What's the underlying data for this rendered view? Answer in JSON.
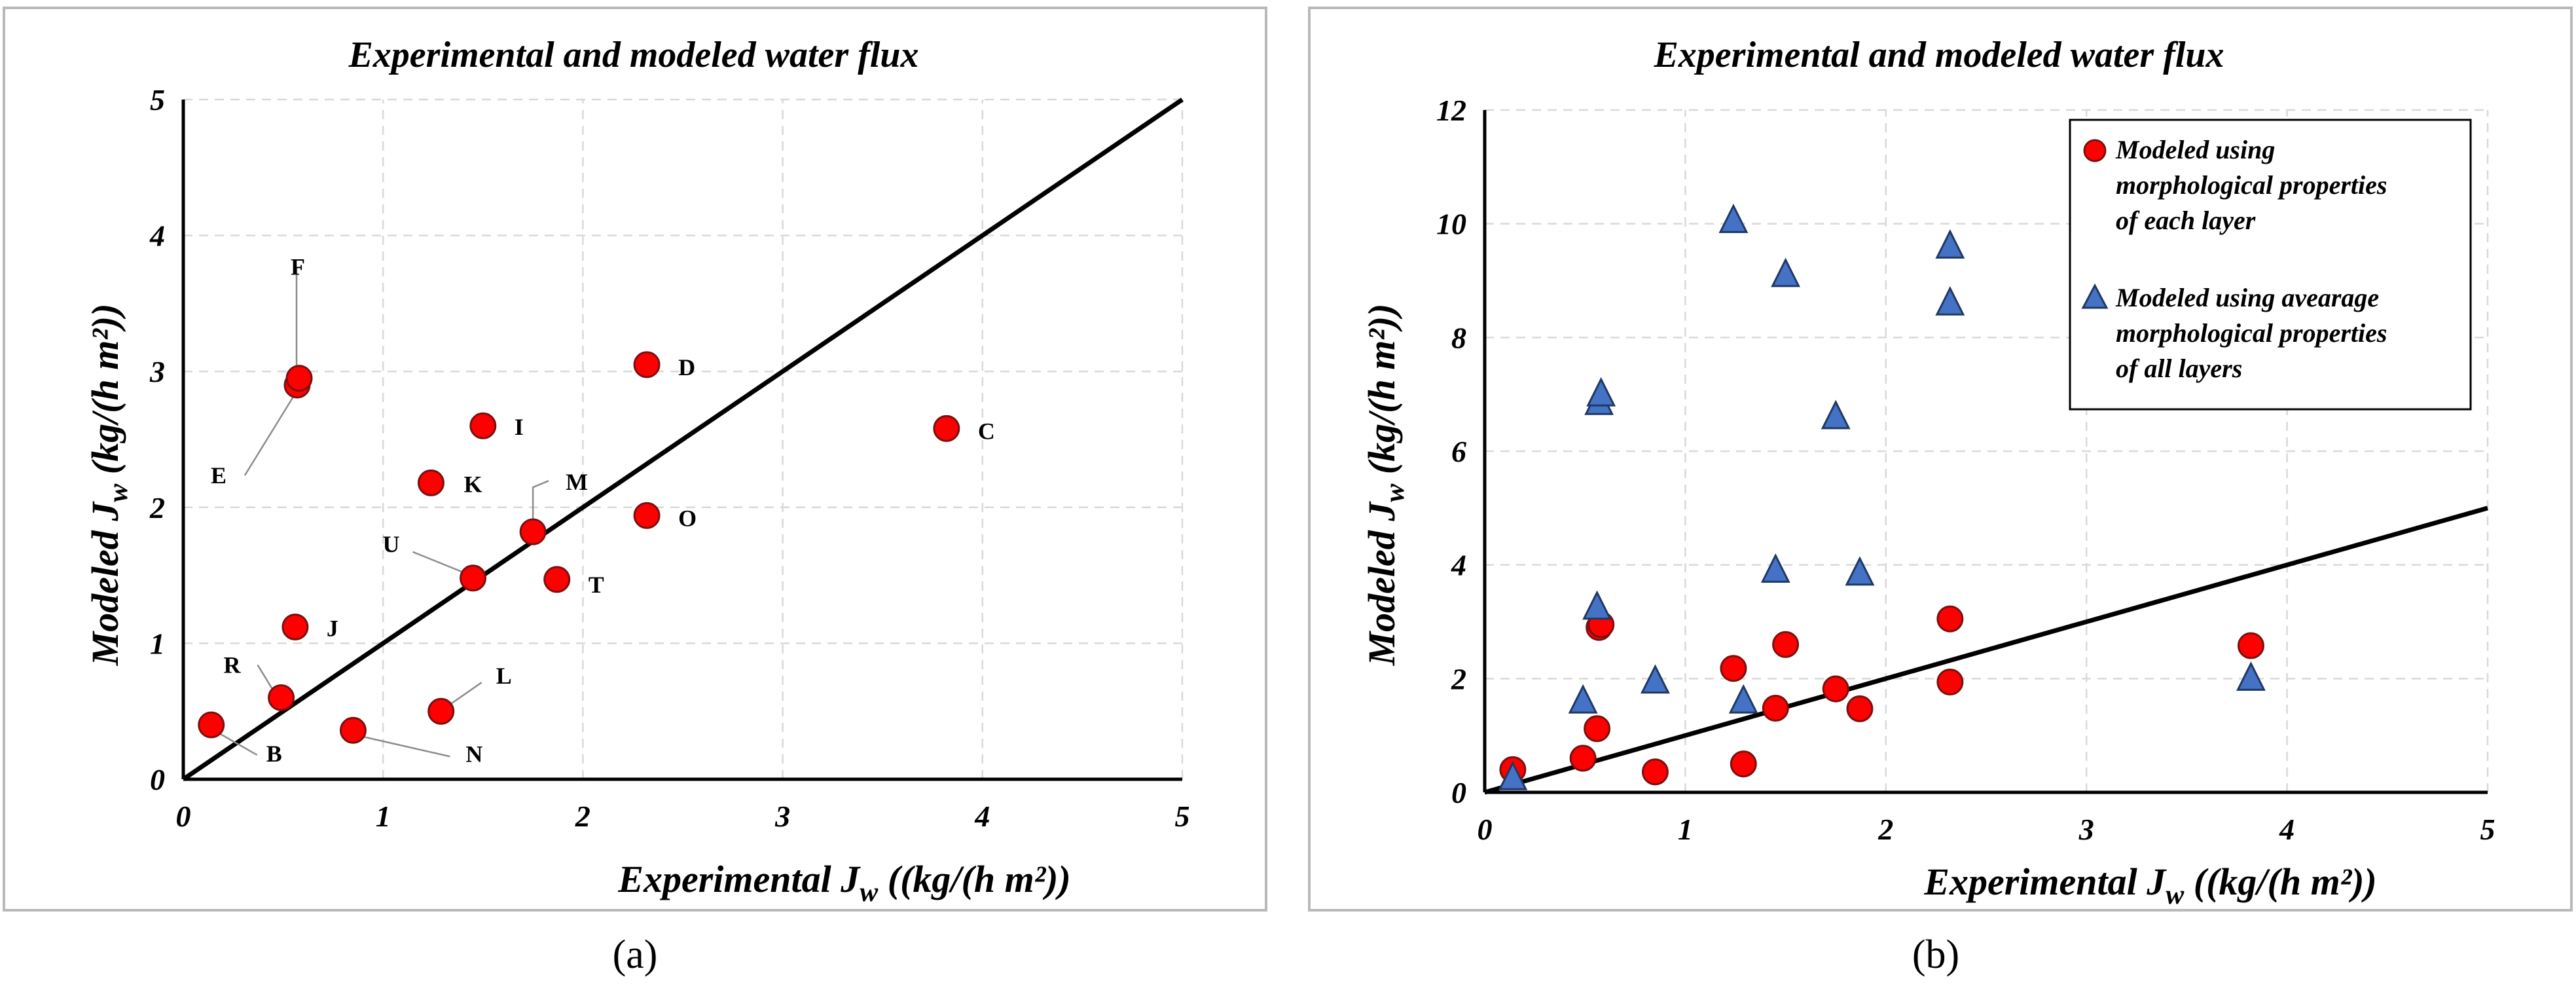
{
  "chart_data": [
    {
      "panel": "(a)",
      "type": "scatter",
      "title": "Experimental and modeled water flux",
      "xlabel": "Experimental J_w ((kg/(h m²))",
      "ylabel": "Modeled J_w (kg/(h m²))",
      "xlim": [
        0,
        5
      ],
      "ylim": [
        0,
        5
      ],
      "xticks": [
        0,
        1,
        2,
        3,
        4,
        5
      ],
      "yticks": [
        0,
        1,
        2,
        3,
        4,
        5
      ],
      "grid": true,
      "reference_line": {
        "x": [
          0,
          5
        ],
        "y": [
          0,
          5
        ],
        "name": "y = x"
      },
      "series": [
        {
          "name": "Modeled",
          "marker": "circle",
          "color": "#ff0000",
          "points": [
            {
              "label": "B",
              "x": 0.14,
              "y": 0.4
            },
            {
              "label": "R",
              "x": 0.49,
              "y": 0.6
            },
            {
              "label": "J",
              "x": 0.56,
              "y": 1.12
            },
            {
              "label": "E",
              "x": 0.57,
              "y": 2.9
            },
            {
              "label": "F",
              "x": 0.58,
              "y": 2.95
            },
            {
              "label": "N",
              "x": 0.85,
              "y": 0.36
            },
            {
              "label": "K",
              "x": 1.24,
              "y": 2.18
            },
            {
              "label": "L",
              "x": 1.29,
              "y": 0.5
            },
            {
              "label": "U",
              "x": 1.45,
              "y": 1.48
            },
            {
              "label": "I",
              "x": 1.5,
              "y": 2.6
            },
            {
              "label": "M",
              "x": 1.75,
              "y": 1.82
            },
            {
              "label": "T",
              "x": 1.87,
              "y": 1.47
            },
            {
              "label": "D",
              "x": 2.32,
              "y": 3.05
            },
            {
              "label": "O",
              "x": 2.32,
              "y": 1.94
            },
            {
              "label": "C",
              "x": 3.82,
              "y": 2.58
            }
          ]
        }
      ]
    },
    {
      "panel": "(b)",
      "type": "scatter",
      "title": "Experimental and modeled water flux",
      "xlabel": "Experimental J_w ((kg/(h m²))",
      "ylabel": "Modeled J_w (kg/(h m²))",
      "xlim": [
        0,
        5
      ],
      "ylim": [
        0,
        12
      ],
      "xticks": [
        0,
        1,
        2,
        3,
        4,
        5
      ],
      "yticks": [
        0,
        2,
        4,
        6,
        8,
        10,
        12
      ],
      "grid": true,
      "legend_position": "top-right",
      "reference_line": {
        "x": [
          0,
          5
        ],
        "y": [
          0,
          5
        ],
        "name": "y = x"
      },
      "series": [
        {
          "name": "Modeled using morphological properties of each layer",
          "legend_lines": [
            "Modeled using",
            "morphological properties",
            "of each layer"
          ],
          "marker": "circle",
          "color": "#ff0000",
          "points": [
            {
              "x": 0.14,
              "y": 0.4
            },
            {
              "x": 0.49,
              "y": 0.6
            },
            {
              "x": 0.56,
              "y": 1.12
            },
            {
              "x": 0.57,
              "y": 2.9
            },
            {
              "x": 0.58,
              "y": 2.95
            },
            {
              "x": 0.85,
              "y": 0.36
            },
            {
              "x": 1.24,
              "y": 2.18
            },
            {
              "x": 1.29,
              "y": 0.5
            },
            {
              "x": 1.45,
              "y": 1.48
            },
            {
              "x": 1.5,
              "y": 2.6
            },
            {
              "x": 1.75,
              "y": 1.82
            },
            {
              "x": 1.87,
              "y": 1.47
            },
            {
              "x": 2.32,
              "y": 3.05
            },
            {
              "x": 2.32,
              "y": 1.94
            },
            {
              "x": 3.82,
              "y": 2.58
            }
          ]
        },
        {
          "name": "Modeled using avearage morphological properties of all layers",
          "legend_lines": [
            "Modeled using avearage",
            "morphological properties",
            "of all layers"
          ],
          "marker": "triangle",
          "color": "#4472c4",
          "points": [
            {
              "x": 0.14,
              "y": 0.25
            },
            {
              "x": 0.49,
              "y": 1.6
            },
            {
              "x": 0.56,
              "y": 3.25
            },
            {
              "x": 0.57,
              "y": 6.85
            },
            {
              "x": 0.58,
              "y": 7.0
            },
            {
              "x": 0.85,
              "y": 1.95
            },
            {
              "x": 1.24,
              "y": 10.05
            },
            {
              "x": 1.29,
              "y": 1.6
            },
            {
              "x": 1.45,
              "y": 3.9
            },
            {
              "x": 1.5,
              "y": 9.1
            },
            {
              "x": 1.75,
              "y": 6.6
            },
            {
              "x": 1.87,
              "y": 3.85
            },
            {
              "x": 2.32,
              "y": 9.6
            },
            {
              "x": 2.32,
              "y": 8.6
            },
            {
              "x": 3.82,
              "y": 2.0
            }
          ]
        }
      ]
    }
  ]
}
